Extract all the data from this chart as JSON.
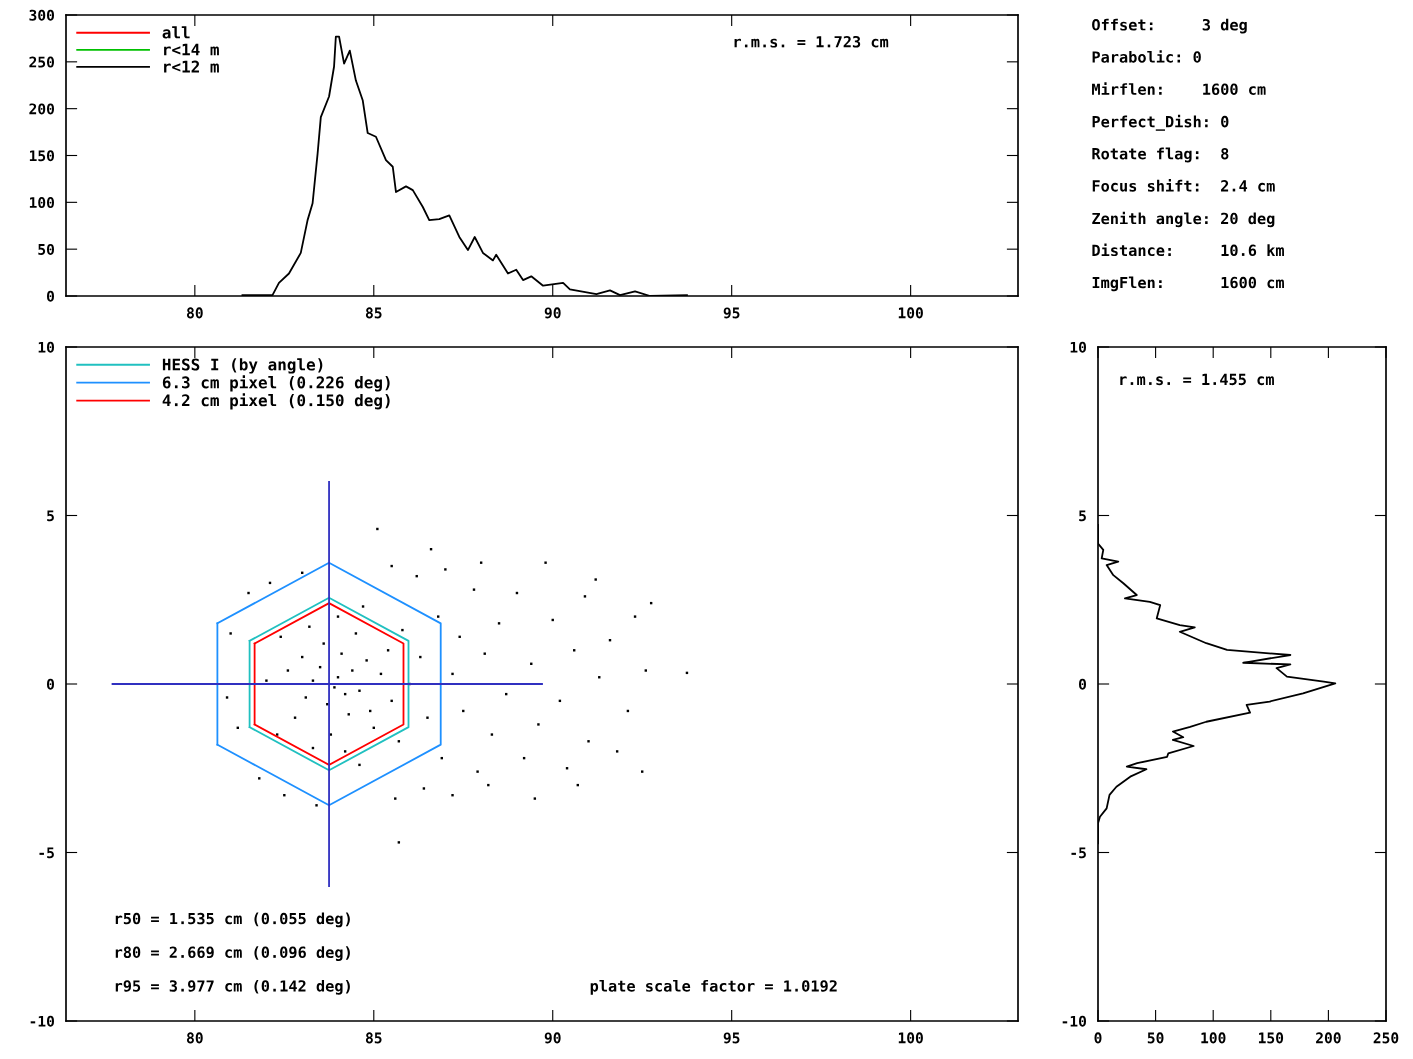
{
  "chart_data": [
    {
      "type": "line",
      "xlim": [
        76.4,
        103.0
      ],
      "ylim": [
        0,
        300
      ],
      "xticks": [
        80,
        85,
        90,
        95,
        100
      ],
      "yticks": [
        0,
        50,
        100,
        150,
        200,
        250,
        300
      ],
      "legend": "top left",
      "marker": "none",
      "line_style": "solid",
      "grid": false,
      "x": [
        81.33,
        82.17,
        82.35,
        82.63,
        82.96,
        83.15,
        83.29,
        83.43,
        83.52,
        83.75,
        83.89,
        83.94,
        84.03,
        84.17,
        84.33,
        84.5,
        84.69,
        84.83,
        85.06,
        85.34,
        85.53,
        85.62,
        85.9,
        86.09,
        86.37,
        86.55,
        86.83,
        87.11,
        87.39,
        87.63,
        87.82,
        88.05,
        88.33,
        88.42,
        88.75,
        88.98,
        89.17,
        89.4,
        89.73,
        90.29,
        90.48,
        91.22,
        91.6,
        91.88,
        92.3,
        92.72,
        93.75
      ],
      "series": [
        {
          "name": "all",
          "color": "#ff0000",
          "values": [
            null,
            null,
            null,
            null,
            null,
            null,
            null,
            null,
            null,
            null,
            null,
            null,
            null,
            null,
            null,
            null,
            null,
            null,
            null,
            null,
            null,
            null,
            null,
            null,
            null,
            null,
            null,
            null,
            null,
            null,
            null,
            null,
            null,
            null,
            null,
            null,
            null,
            null,
            null,
            null,
            null,
            null,
            null,
            null,
            null,
            null,
            null
          ]
        },
        {
          "name": "r<14 m",
          "color": "#00c000",
          "values": [
            null,
            null,
            null,
            null,
            null,
            null,
            null,
            null,
            null,
            null,
            null,
            null,
            null,
            null,
            null,
            null,
            null,
            null,
            null,
            null,
            null,
            null,
            null,
            null,
            null,
            null,
            null,
            null,
            null,
            null,
            null,
            null,
            null,
            null,
            null,
            null,
            null,
            null,
            null,
            null,
            null,
            null,
            null,
            null,
            null,
            null,
            null
          ]
        },
        {
          "name": "r<12 m",
          "color": "#000000",
          "values": [
            1,
            1,
            14,
            24,
            46,
            81,
            99,
            152,
            191,
            213,
            245,
            277,
            277,
            248,
            262,
            230,
            209,
            174,
            170,
            145,
            138,
            111,
            117,
            113,
            95,
            81,
            82,
            86,
            63,
            49,
            63,
            46,
            38,
            44,
            24,
            28,
            17,
            21,
            11,
            14,
            7,
            2,
            6,
            1,
            5,
            0,
            1
          ]
        }
      ],
      "annotations": [
        "r.m.s. = 1.723 cm"
      ]
    },
    {
      "type": "scatter",
      "xlim": [
        76.4,
        103.0
      ],
      "ylim": [
        -10,
        10
      ],
      "xticks": [
        80,
        85,
        90,
        95,
        100
      ],
      "yticks": [
        -10,
        -5,
        0,
        5,
        10
      ],
      "legend": "top left",
      "grid": false,
      "series": [
        {
          "type": "scatter",
          "color": "#000000",
          "marker": "square",
          "x": [
            83.5,
            84.0,
            84.2,
            83.9,
            84.4,
            83.7,
            84.6,
            83.3,
            84.1,
            84.3,
            83.6,
            84.8,
            84.9,
            83.1,
            83.0,
            85.2,
            85.0,
            84.5,
            83.8,
            82.8,
            82.6,
            85.5,
            85.4,
            84.0,
            84.2,
            83.2,
            83.3,
            85.8,
            85.7,
            82.4,
            82.3,
            86.0,
            82.0,
            84.7,
            84.6,
            86.3,
            86.5,
            86.8,
            86.9,
            87.2,
            87.4,
            87.5,
            87.8,
            87.9,
            88.1,
            88.3,
            88.5,
            88.7,
            86.2,
            86.4,
            85.5,
            85.6,
            87.0,
            87.2,
            88.0,
            88.2,
            85.1,
            85.7,
            86.6,
            89.0,
            89.2,
            89.4,
            89.6,
            90.0,
            90.2,
            90.4,
            90.6,
            90.9,
            91.0,
            91.3,
            91.6,
            91.8,
            92.1,
            92.3,
            92.5,
            92.75,
            92.6,
            93.75,
            89.8,
            89.5,
            90.7,
            91.2,
            81.0,
            81.2,
            81.5,
            81.8,
            82.1,
            82.5,
            83.0,
            83.4,
            80.9
          ],
          "values": [
            0.5,
            0.2,
            -0.3,
            -0.1,
            0.4,
            -0.6,
            -0.2,
            0.1,
            0.9,
            -0.9,
            1.2,
            0.7,
            -0.8,
            -0.4,
            0.8,
            0.3,
            -1.3,
            1.5,
            -1.5,
            -1.0,
            0.4,
            -0.5,
            1.0,
            2.0,
            -2.0,
            1.7,
            -1.9,
            1.6,
            -1.7,
            1.4,
            -1.5,
            0.0,
            0.1,
            2.3,
            -2.4,
            0.8,
            -1.0,
            2.0,
            -2.2,
            0.3,
            1.4,
            -0.8,
            2.8,
            -2.6,
            0.9,
            -1.5,
            1.8,
            -0.3,
            3.2,
            -3.1,
            3.5,
            -3.4,
            3.4,
            -3.3,
            3.6,
            -3.0,
            4.6,
            -4.7,
            4.0,
            2.7,
            -2.2,
            0.6,
            -1.2,
            1.9,
            -0.5,
            -2.5,
            1.0,
            2.6,
            -1.7,
            0.2,
            1.3,
            -2.0,
            -0.8,
            2.0,
            -2.6,
            2.4,
            0.4,
            0.33,
            3.6,
            -3.4,
            -3.0,
            3.1,
            1.5,
            -1.3,
            2.7,
            -2.8,
            3.0,
            -3.3,
            3.3,
            -3.6,
            -0.4
          ]
        },
        {
          "type": "line",
          "name": "HESS I (by angle)",
          "color": "#20c0c0",
          "marker": "none",
          "x": [
            81.53,
            83.75,
            85.97,
            85.97,
            83.75,
            81.53
          ],
          "values": [
            1.28,
            2.56,
            1.28,
            -1.28,
            -2.56,
            -1.28
          ]
        },
        {
          "type": "line",
          "color": "#20c0c0",
          "marker": "none",
          "x": [
            81.53,
            81.53
          ],
          "values": [
            -1.28,
            1.28
          ]
        },
        {
          "type": "line",
          "name": "6.3 cm pixel (0.226 deg)",
          "color": "#1e90ff",
          "marker": "none",
          "x": [
            80.63,
            83.75,
            86.87,
            86.87,
            83.75,
            80.63
          ],
          "values": [
            1.8,
            3.6,
            1.8,
            -1.8,
            -3.6,
            -1.8
          ]
        },
        {
          "type": "line",
          "color": "#1e90ff",
          "marker": "none",
          "x": [
            80.63,
            80.63
          ],
          "values": [
            -1.8,
            1.8
          ]
        },
        {
          "type": "line",
          "name": "4.2 cm pixel (0.150 deg)",
          "color": "#ff0000",
          "marker": "none",
          "x": [
            81.67,
            83.75,
            85.83,
            85.83,
            83.75,
            81.67
          ],
          "values": [
            1.2,
            2.4,
            1.2,
            -1.2,
            -2.4,
            -1.2
          ]
        },
        {
          "type": "line",
          "color": "#ff0000",
          "marker": "none",
          "x": [
            81.67,
            81.67
          ],
          "values": [
            -1.2,
            1.2
          ]
        },
        {
          "type": "line",
          "color": "#3030c0",
          "marker": "none",
          "x": [
            77.7,
            89.7
          ],
          "values": [
            0,
            0
          ]
        },
        {
          "type": "line",
          "color": "#3030c0",
          "marker": "none",
          "x": [
            83.75,
            83.75
          ],
          "values": [
            6.0,
            -6.0
          ]
        }
      ],
      "annotations": [
        "r50 = 1.535 cm (0.055 deg)",
        "r80 = 2.669 cm (0.096 deg)",
        "r95 = 3.977 cm (0.142 deg)",
        "plate scale factor = 1.0192"
      ]
    },
    {
      "type": "line",
      "xlim": [
        0,
        250
      ],
      "ylim": [
        -10,
        10
      ],
      "xticks": [
        0,
        50,
        100,
        150,
        200,
        250
      ],
      "yticks": [
        -10,
        -5,
        0,
        5,
        10
      ],
      "marker": "none",
      "grid": false,
      "series": [
        {
          "color": "#000000",
          "x": [
            0,
            0,
            4.6,
            3.2,
            17.6,
            7.5,
            13.3,
            22,
            33.6,
            23.4,
            45,
            54,
            51,
            71,
            84,
            71,
            94,
            112,
            167,
            126,
            167,
            155,
            164,
            196,
            206,
            178,
            149,
            129,
            132,
            94,
            80,
            65,
            74,
            65,
            83,
            61,
            60,
            34,
            25,
            42,
            28,
            16,
            10,
            7.5,
            1.7,
            0,
            0
          ],
          "values": [
            4.72,
            4.17,
            3.98,
            3.73,
            3.63,
            3.53,
            3.23,
            2.99,
            2.64,
            2.54,
            2.44,
            2.34,
            1.95,
            1.75,
            1.68,
            1.55,
            1.21,
            1.01,
            0.86,
            0.63,
            0.58,
            0.47,
            0.22,
            0.07,
            0.02,
            -0.28,
            -0.52,
            -0.62,
            -0.85,
            -1.12,
            -1.27,
            -1.41,
            -1.58,
            -1.66,
            -1.84,
            -2.06,
            -2.16,
            -2.35,
            -2.45,
            -2.53,
            -2.75,
            -3.05,
            -3.29,
            -3.69,
            -3.94,
            -4.13,
            -4.73
          ]
        }
      ],
      "annotations": [
        "r.m.s. = 1.455 cm"
      ]
    },
    {
      "type": "other",
      "annotations": [
        "Offset:     3 deg",
        "Parabolic: 0",
        "Mirflen:    1600 cm",
        "Perfect_Dish: 0",
        "Rotate flag:  8",
        "Focus shift:  2.4 cm",
        "Zenith angle: 20 deg",
        "Distance:     10.6 km",
        "ImgFlen:      1600 cm"
      ]
    }
  ]
}
